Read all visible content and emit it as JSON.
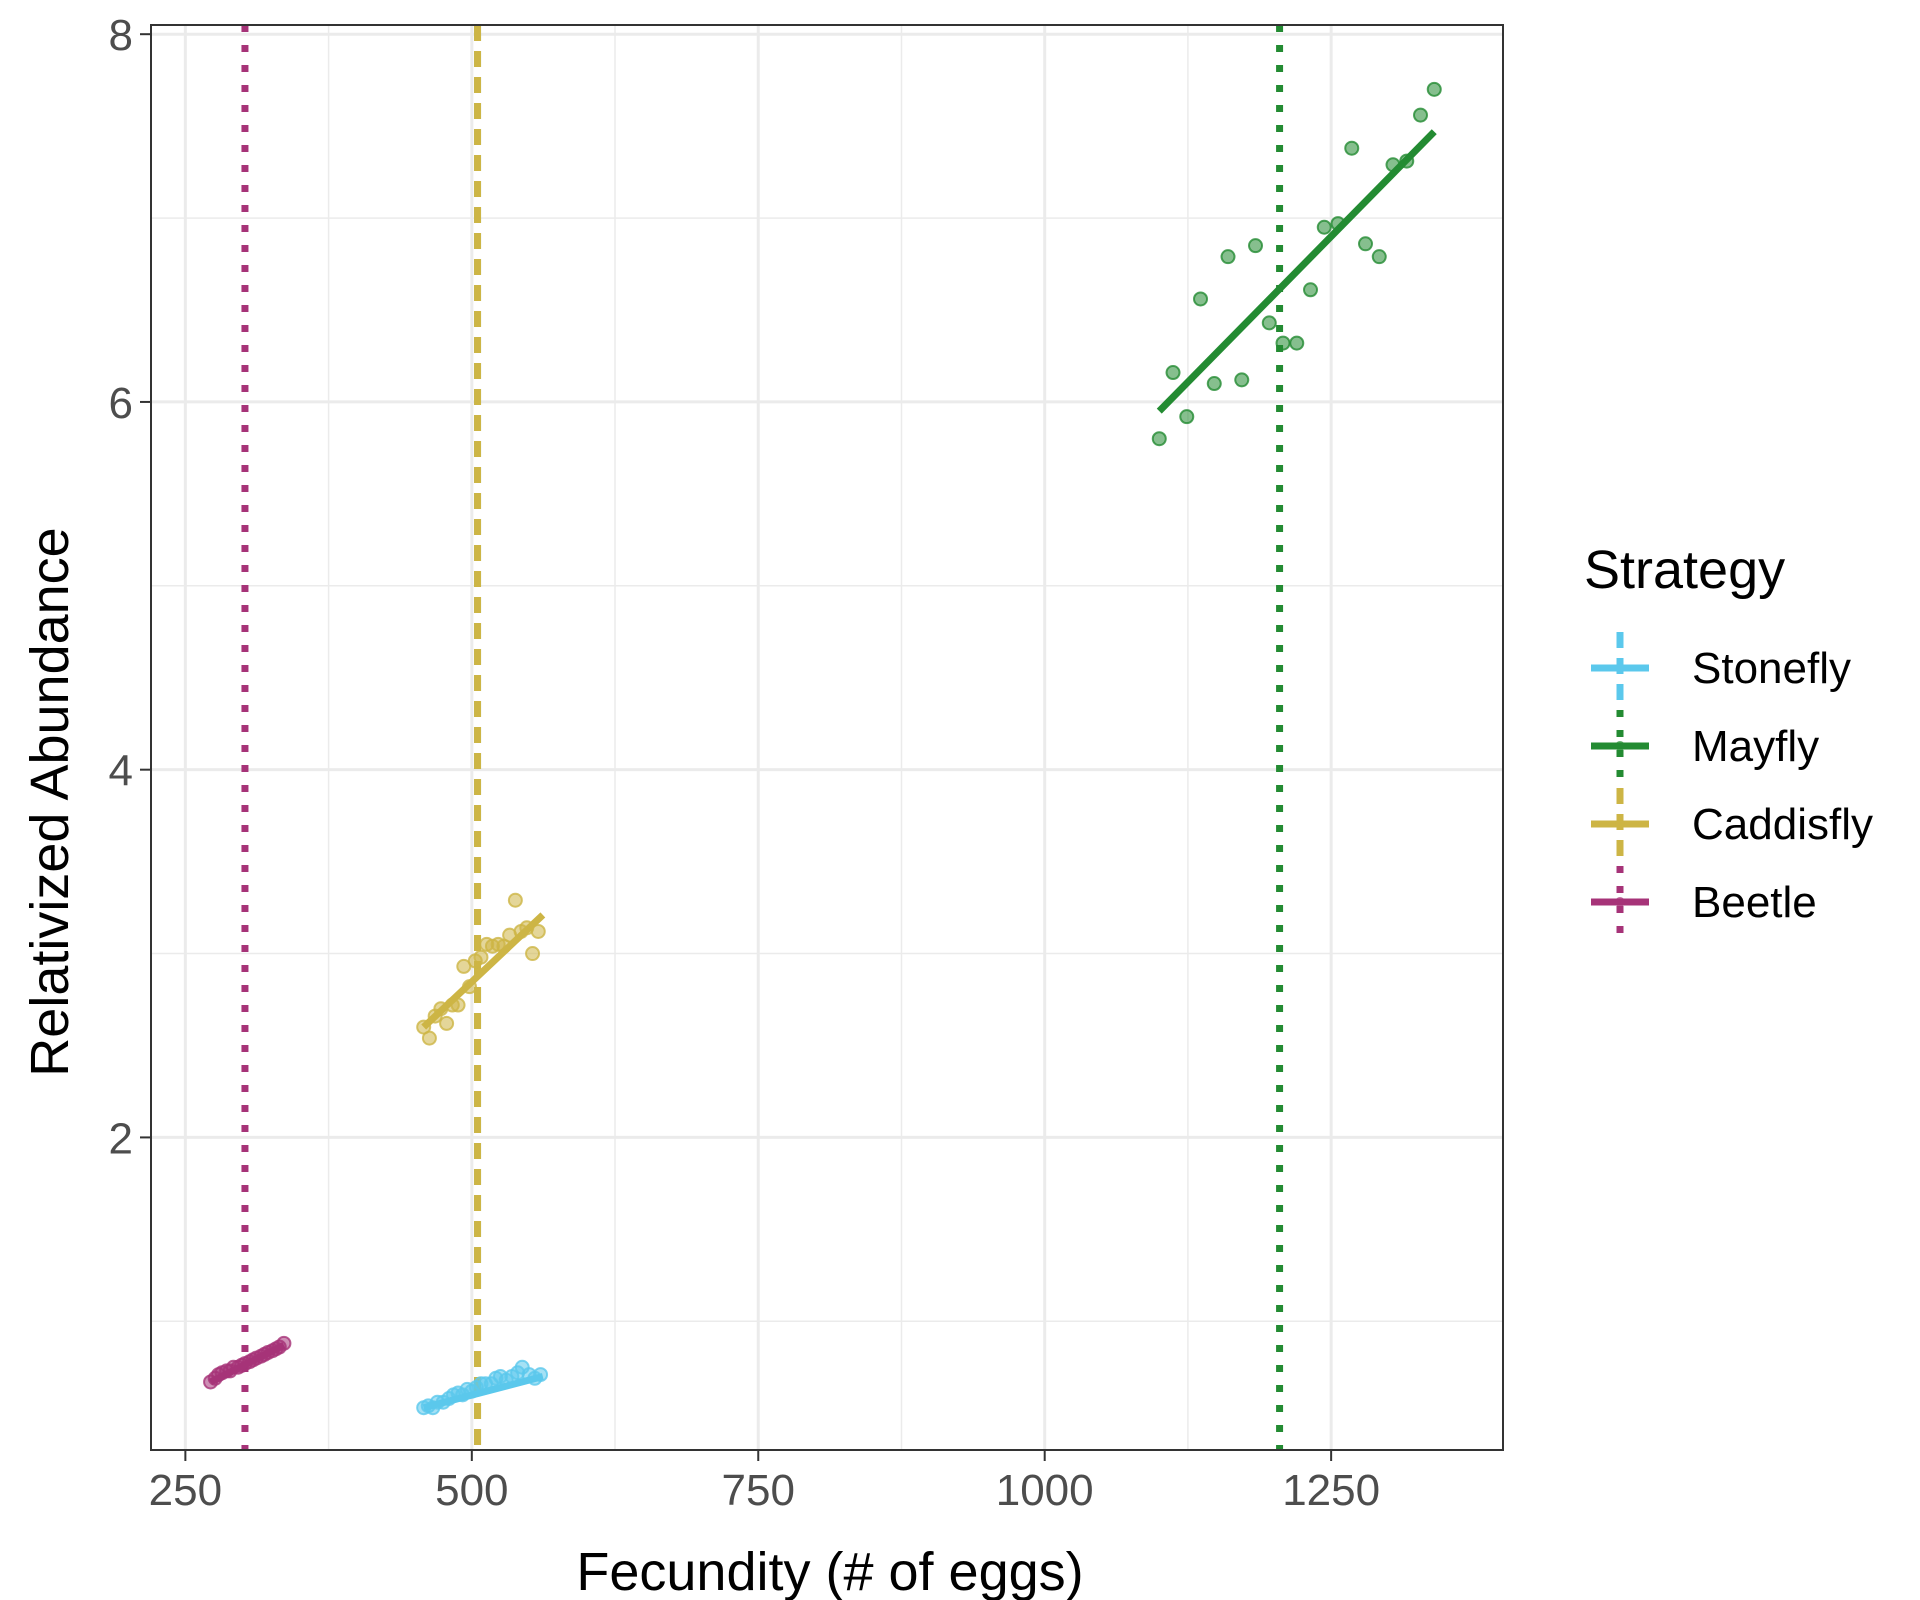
{
  "chart_data": {
    "type": "scatter",
    "title": "",
    "xlabel": "Fecundity (# of eggs)",
    "ylabel": "Relativized Abundance",
    "xlim": [
      220,
      1400
    ],
    "ylim": [
      0.3,
      8.05
    ],
    "x_ticks": [
      250,
      500,
      750,
      1000,
      1250
    ],
    "x_tick_labels": [
      "250",
      "500",
      "750",
      "1000",
      "1250"
    ],
    "y_ticks": [
      2,
      4,
      6,
      8
    ],
    "y_tick_labels": [
      "2",
      "4",
      "6",
      "8"
    ],
    "x_minor_ticks": [
      375,
      625,
      875,
      1125
    ],
    "y_minor_ticks": [
      1,
      3,
      5,
      7
    ],
    "grid": true,
    "legend": {
      "title": "Strategy",
      "position": "right"
    },
    "series": [
      {
        "name": "Stonefly",
        "color": "#5BC8EC",
        "vline_style": "dashed",
        "vline_x": 505,
        "fit": {
          "x": [
            458,
            562
          ],
          "y": [
            0.53,
            0.7
          ]
        },
        "points": [
          [
            458,
            0.53
          ],
          [
            462,
            0.54
          ],
          [
            466,
            0.53
          ],
          [
            470,
            0.56
          ],
          [
            475,
            0.56
          ],
          [
            480,
            0.58
          ],
          [
            484,
            0.6
          ],
          [
            488,
            0.61
          ],
          [
            492,
            0.6
          ],
          [
            496,
            0.63
          ],
          [
            500,
            0.62
          ],
          [
            504,
            0.64
          ],
          [
            508,
            0.66
          ],
          [
            512,
            0.66
          ],
          [
            517,
            0.66
          ],
          [
            521,
            0.69
          ],
          [
            525,
            0.7
          ],
          [
            530,
            0.68
          ],
          [
            535,
            0.7
          ],
          [
            540,
            0.72
          ],
          [
            544,
            0.75
          ],
          [
            550,
            0.71
          ],
          [
            555,
            0.69
          ],
          [
            560,
            0.71
          ]
        ]
      },
      {
        "name": "Mayfly",
        "color": "#238B32",
        "vline_style": "dotted",
        "vline_x": 1205,
        "fit": {
          "x": [
            1100,
            1340
          ],
          "y": [
            5.95,
            7.47
          ]
        },
        "points": [
          [
            1100,
            5.8
          ],
          [
            1112,
            6.16
          ],
          [
            1124,
            5.92
          ],
          [
            1136,
            6.56
          ],
          [
            1148,
            6.1
          ],
          [
            1160,
            6.79
          ],
          [
            1172,
            6.12
          ],
          [
            1184,
            6.85
          ],
          [
            1196,
            6.43
          ],
          [
            1208,
            6.32
          ],
          [
            1220,
            6.32
          ],
          [
            1232,
            6.61
          ],
          [
            1244,
            6.95
          ],
          [
            1256,
            6.97
          ],
          [
            1268,
            7.38
          ],
          [
            1280,
            6.86
          ],
          [
            1292,
            6.79
          ],
          [
            1304,
            7.29
          ],
          [
            1316,
            7.31
          ],
          [
            1328,
            7.56
          ],
          [
            1340,
            7.7
          ]
        ]
      },
      {
        "name": "Caddisfly",
        "color": "#CDB545",
        "vline_style": "dashed",
        "vline_x": 505,
        "fit": {
          "x": [
            458,
            562
          ],
          "y": [
            2.6,
            3.21
          ]
        },
        "points": [
          [
            458,
            2.6
          ],
          [
            463,
            2.54
          ],
          [
            468,
            2.66
          ],
          [
            473,
            2.7
          ],
          [
            478,
            2.62
          ],
          [
            483,
            2.72
          ],
          [
            488,
            2.72
          ],
          [
            493,
            2.93
          ],
          [
            498,
            2.82
          ],
          [
            503,
            2.96
          ],
          [
            508,
            2.98
          ],
          [
            513,
            3.05
          ],
          [
            518,
            3.04
          ],
          [
            523,
            3.05
          ],
          [
            528,
            3.04
          ],
          [
            533,
            3.1
          ],
          [
            538,
            3.29
          ],
          [
            543,
            3.12
          ],
          [
            548,
            3.14
          ],
          [
            553,
            3.0
          ],
          [
            558,
            3.12
          ]
        ]
      },
      {
        "name": "Beetle",
        "color": "#A63378",
        "vline_style": "dotted",
        "vline_x": 302,
        "fit": {
          "x": [
            272,
            336
          ],
          "y": [
            0.67,
            0.87
          ]
        },
        "points": [
          [
            272,
            0.67
          ],
          [
            276,
            0.69
          ],
          [
            279,
            0.71
          ],
          [
            282,
            0.72
          ],
          [
            286,
            0.73
          ],
          [
            289,
            0.73
          ],
          [
            292,
            0.75
          ],
          [
            296,
            0.75
          ],
          [
            299,
            0.76
          ],
          [
            302,
            0.77
          ],
          [
            306,
            0.78
          ],
          [
            309,
            0.79
          ],
          [
            312,
            0.8
          ],
          [
            316,
            0.81
          ],
          [
            319,
            0.82
          ],
          [
            322,
            0.83
          ],
          [
            326,
            0.84
          ],
          [
            329,
            0.85
          ],
          [
            332,
            0.86
          ],
          [
            336,
            0.88
          ]
        ]
      }
    ]
  }
}
